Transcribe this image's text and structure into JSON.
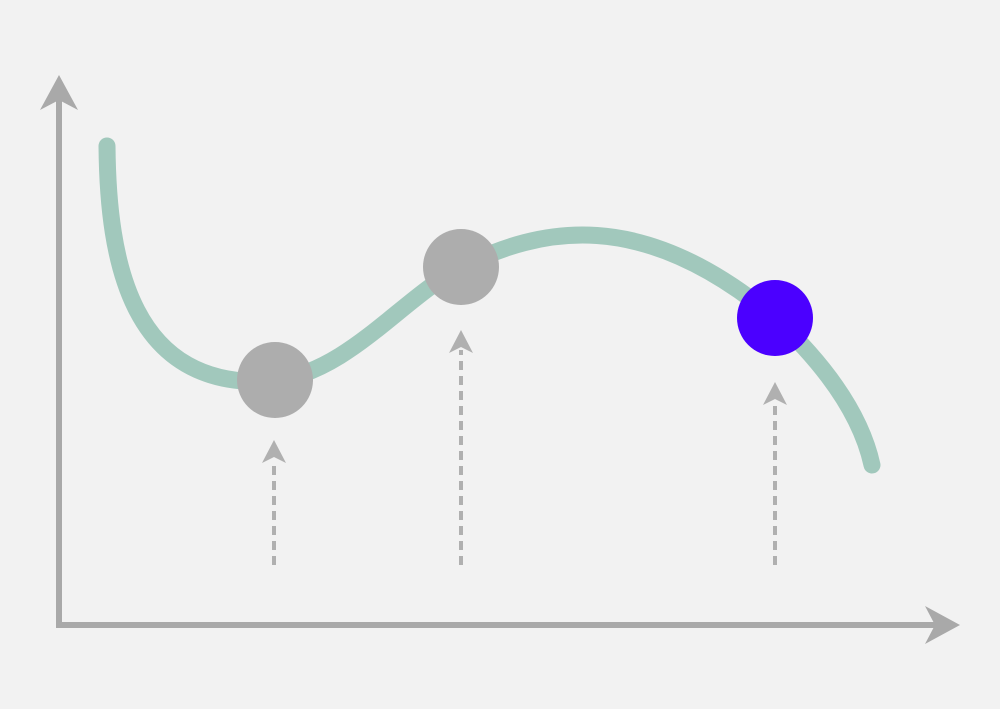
{
  "diagram": {
    "description_colors": {
      "background": "#f2f2f2",
      "axis": "#a9a9a9",
      "curve": "#a1c8bc",
      "sample_point": "#adadad",
      "highlighted_point": "#4b00ff",
      "arrow": "#b0b0b0"
    },
    "sample_points": [
      {
        "name": "point-1",
        "highlighted": false
      },
      {
        "name": "point-2",
        "highlighted": false
      },
      {
        "name": "point-3",
        "highlighted": true
      }
    ]
  }
}
